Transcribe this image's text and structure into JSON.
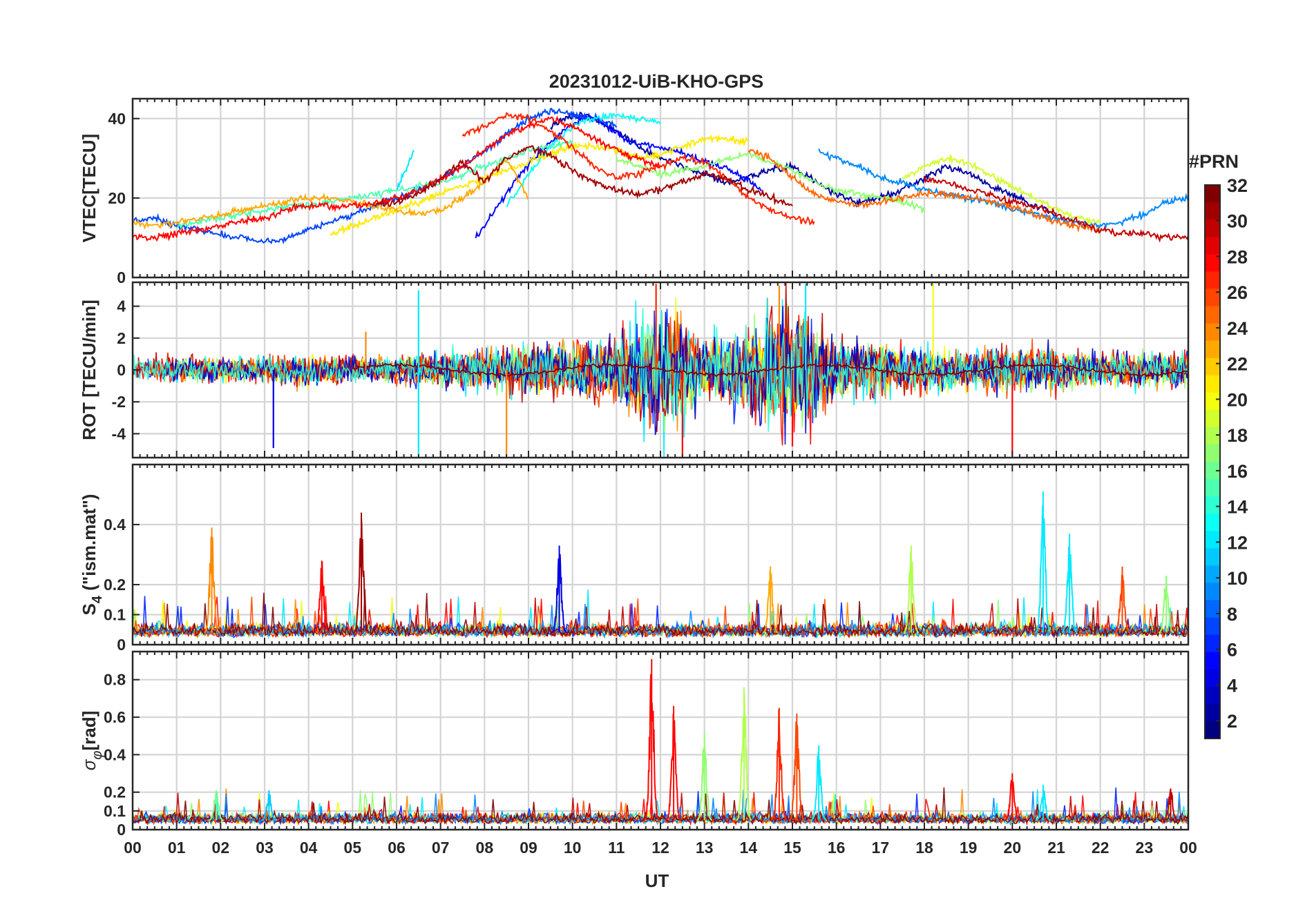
{
  "chart_data": {
    "type": "line",
    "title": "20231012-UiB-KHO-GPS",
    "xlabel": "UT",
    "x_ticks": [
      "00",
      "01",
      "02",
      "03",
      "04",
      "05",
      "06",
      "07",
      "08",
      "09",
      "10",
      "11",
      "12",
      "13",
      "14",
      "15",
      "16",
      "17",
      "18",
      "19",
      "20",
      "21",
      "22",
      "23",
      "00"
    ],
    "x_range_hours": [
      0,
      24
    ],
    "grid": true,
    "colorbar": {
      "title": "#PRN",
      "range": [
        1,
        32
      ],
      "colormap": "jet",
      "ticks": [
        "2",
        "4",
        "6",
        "8",
        "10",
        "12",
        "14",
        "16",
        "18",
        "20",
        "22",
        "24",
        "26",
        "28",
        "30",
        "32"
      ],
      "placement": "right"
    },
    "panels": [
      {
        "name": "vtec",
        "ylabel": "VTEC[TECU]",
        "ylim": [
          0,
          45
        ],
        "y_ticks": [
          "0",
          "20",
          "40"
        ],
        "y_tick_values": [
          0,
          20,
          40
        ],
        "series": [
          {
            "prn": 2,
            "x": [
              9.5,
              10.0,
              10.5,
              11.0,
              11.5,
              12.0,
              12.5,
              13.0,
              13.5,
              14.0,
              14.5,
              15.0,
              15.5,
              16.0,
              16.5,
              17.0,
              17.5,
              18.0,
              18.5,
              19.0,
              19.5,
              20.0,
              20.5,
              21.0
            ],
            "y": [
              38,
              41,
              40,
              37,
              33,
              30,
              28,
              26,
              24,
              25,
              27,
              28,
              24,
              21,
              19,
              20,
              22,
              25,
              28,
              26,
              23,
              21,
              18,
              16
            ]
          },
          {
            "prn": 5,
            "x": [
              7.8,
              8.3,
              8.8,
              9.3,
              9.8,
              10.3,
              10.8,
              11.3,
              11.8,
              12.3,
              12.8,
              13.3,
              13.8,
              14.3
            ],
            "y": [
              10,
              18,
              26,
              32,
              37,
              41,
              38,
              34,
              33,
              32,
              30,
              28,
              26,
              22
            ]
          },
          {
            "prn": 7,
            "x": [
              0.0,
              0.5,
              1.0,
              1.5,
              2.0,
              2.5,
              3.0,
              3.5,
              4.0,
              4.5,
              5.0,
              5.5,
              6.0,
              6.5,
              7.0,
              7.5,
              8.0,
              8.5,
              9.0,
              9.5,
              10.0,
              10.5,
              11.0
            ],
            "y": [
              14,
              15,
              13,
              12,
              11,
              10,
              9,
              10,
              12,
              14,
              16,
              18,
              20,
              22,
              25,
              28,
              32,
              36,
              40,
              42,
              41,
              40,
              38
            ]
          },
          {
            "prn": 9,
            "x": [
              15.6,
              16.0,
              16.5,
              17.0,
              17.5,
              18.0,
              18.5,
              19.0,
              19.5,
              20.0,
              20.5,
              21.0,
              21.5,
              22.0,
              22.5,
              23.0,
              23.5,
              24.0
            ],
            "y": [
              32,
              30,
              28,
              25,
              24,
              22,
              21,
              20,
              19,
              17,
              16,
              15,
              14,
              13,
              14,
              16,
              19,
              20
            ]
          },
          {
            "prn": 12,
            "x": [
              6.0,
              6.2,
              6.4
            ],
            "y": [
              22,
              27,
              32
            ]
          },
          {
            "prn": 13,
            "x": [
              8.5,
              9.0,
              9.5,
              10.0,
              10.5,
              11.0,
              11.5,
              12.0
            ],
            "y": [
              18,
              26,
              33,
              38,
              40,
              41,
              40,
              39
            ]
          },
          {
            "prn": 15,
            "x": [
              1.0,
              1.5,
              2.0,
              2.5,
              3.0,
              3.5,
              4.0,
              4.5,
              5.0,
              5.5,
              6.0,
              6.5,
              7.0,
              7.5,
              8.0,
              8.5,
              9.0,
              9.5,
              10.0
            ],
            "y": [
              13,
              14,
              15,
              16,
              17,
              18,
              18,
              19,
              20,
              21,
              22,
              23,
              24,
              26,
              28,
              30,
              32,
              33,
              34
            ]
          },
          {
            "prn": 17,
            "x": [
              11.0,
              11.5,
              12.0,
              12.5,
              13.0,
              13.5,
              14.0,
              14.5,
              15.0,
              15.5,
              16.0,
              16.5,
              17.0,
              17.5,
              18.0
            ],
            "y": [
              30,
              28,
              26,
              27,
              28,
              30,
              31,
              29,
              27,
              24,
              22,
              21,
              20,
              19,
              17
            ]
          },
          {
            "prn": 19,
            "x": [
              17.5,
              18.0,
              18.5,
              19.0,
              19.5,
              20.0,
              20.5,
              21.0,
              21.5,
              22.0
            ],
            "y": [
              25,
              28,
              30,
              29,
              26,
              23,
              20,
              17,
              15,
              14
            ]
          },
          {
            "prn": 21,
            "x": [
              4.5,
              5.0,
              5.5,
              6.0,
              6.5,
              7.0,
              7.5,
              8.0,
              8.5,
              9.0,
              9.5,
              10.0,
              10.5,
              11.0,
              11.5,
              12.0,
              12.5,
              13.0,
              13.5,
              14.0
            ],
            "y": [
              11,
              13,
              15,
              17,
              19,
              21,
              23,
              25,
              27,
              29,
              31,
              33,
              33,
              32,
              30,
              31,
              33,
              35,
              35,
              34
            ]
          },
          {
            "prn": 23,
            "x": [
              0.0,
              0.5,
              1.0,
              1.5,
              2.0,
              2.5,
              3.0,
              3.5,
              4.0,
              4.5,
              5.0,
              5.5,
              6.0,
              6.5,
              7.0,
              7.5,
              8.0,
              8.5,
              9.0
            ],
            "y": [
              14,
              13,
              14,
              15,
              16,
              17,
              18,
              19,
              20,
              20,
              19,
              18,
              17,
              16,
              17,
              20,
              24,
              30,
              20
            ]
          },
          {
            "prn": 25,
            "x": [
              14.0,
              14.5,
              15.0,
              15.5,
              16.0,
              16.5,
              17.0,
              17.5,
              18.0,
              18.5,
              19.0,
              19.5,
              20.0,
              20.5,
              21.0,
              21.5,
              22.0
            ],
            "y": [
              32,
              30,
              25,
              21,
              19,
              18,
              19,
              20,
              21,
              21,
              20,
              19,
              18,
              16,
              14,
              13,
              12
            ]
          },
          {
            "prn": 27,
            "x": [
              7.5,
              8.0,
              8.5,
              9.0,
              9.5,
              10.0,
              10.5,
              11.0,
              11.5,
              12.0,
              12.5,
              13.0,
              13.5,
              14.0,
              14.5,
              15.0,
              15.5
            ],
            "y": [
              36,
              38,
              41,
              40,
              37,
              33,
              28,
              25,
              26,
              28,
              30,
              29,
              25,
              20,
              17,
              15,
              14
            ]
          },
          {
            "prn": 28,
            "x": [
              0.0,
              0.5,
              1.0,
              1.5,
              2.0,
              2.5,
              3.0,
              3.5,
              4.0,
              4.5,
              5.0,
              5.5,
              6.0,
              6.5,
              7.0,
              7.5,
              8.0,
              8.5,
              9.0,
              9.5,
              10.0,
              10.5,
              11.0,
              11.5,
              12.0
            ],
            "y": [
              10,
              10,
              11,
              12,
              13,
              14,
              15,
              17,
              18,
              18,
              18,
              19,
              20,
              22,
              25,
              28,
              32,
              36,
              38,
              40,
              38,
              35,
              32,
              30,
              28
            ]
          },
          {
            "prn": 30,
            "x": [
              18.0,
              18.5,
              19.0,
              19.5,
              20.0,
              20.5,
              21.0,
              21.5,
              22.0,
              22.5,
              23.0,
              23.5,
              24.0
            ],
            "y": [
              25,
              24,
              22,
              21,
              19,
              18,
              16,
              14,
              12,
              11,
              11,
              10,
              10
            ]
          },
          {
            "prn": 31,
            "x": [
              5.5,
              6.0,
              6.5,
              7.0,
              7.5,
              8.0,
              8.5,
              9.0,
              9.5,
              10.0,
              10.5,
              11.0,
              11.5,
              12.0,
              12.5,
              13.0,
              13.5,
              14.0,
              14.5,
              15.0
            ],
            "y": [
              18,
              19,
              21,
              25,
              29,
              24,
              30,
              33,
              31,
              27,
              24,
              22,
              21,
              22,
              24,
              26,
              25,
              22,
              20,
              18
            ]
          }
        ]
      },
      {
        "name": "rot",
        "ylabel": "ROT [TECU/min]",
        "ylim": [
          -5.5,
          5.5
        ],
        "y_ticks": [
          "-4",
          "-2",
          "0",
          "2",
          "4"
        ],
        "y_tick_values": [
          -4,
          -2,
          0,
          2,
          4
        ],
        "amplitude_profile": {
          "hours": [
            0,
            2,
            4,
            6,
            7,
            8,
            9,
            10,
            11,
            11.5,
            12,
            12.5,
            13,
            14,
            14.5,
            15,
            15.5,
            16,
            17,
            18,
            19,
            20,
            21,
            22,
            23,
            24
          ],
          "typical_abs_rot": [
            0.6,
            0.6,
            0.7,
            0.6,
            0.8,
            1.0,
            1.2,
            1.3,
            1.5,
            2.5,
            3.0,
            2.5,
            1.5,
            2.0,
            3.0,
            3.2,
            2.5,
            1.5,
            1.2,
            1.0,
            0.9,
            1.2,
            1.0,
            0.8,
            0.8,
            0.8
          ]
        },
        "peaks": [
          {
            "prn": 4,
            "hour": 3.2,
            "value": -4.9
          },
          {
            "prn": 12,
            "hour": 6.5,
            "value": -5.3
          },
          {
            "prn": 12,
            "hour": 6.5,
            "value": 5.0
          },
          {
            "prn": 24,
            "hour": 8.5,
            "value": -5.4
          },
          {
            "prn": 27,
            "hour": 11.9,
            "value": 5.4
          },
          {
            "prn": 28,
            "hour": 12.5,
            "value": -5.4
          },
          {
            "prn": 24,
            "hour": 14.7,
            "value": 5.3
          },
          {
            "prn": 28,
            "hour": 15.0,
            "value": -4.8
          },
          {
            "prn": 12,
            "hour": 15.3,
            "value": 5.4
          },
          {
            "prn": 20,
            "hour": 18.2,
            "value": 5.4
          },
          {
            "prn": 28,
            "hour": 20.0,
            "value": -5.4
          },
          {
            "prn": 24,
            "hour": 5.3,
            "value": 2.4
          }
        ]
      },
      {
        "name": "s4",
        "ylabel": "S4 (\"ism.mat\")",
        "ylabel_main": "S",
        "ylabel_sub": "4",
        "ylabel_rest": " (\"ism.mat\")",
        "ylim": [
          0,
          0.6
        ],
        "y_ticks": [
          "0",
          "0.1",
          "0.2",
          "0.4"
        ],
        "y_tick_values": [
          0,
          0.1,
          0.2,
          0.4
        ],
        "baseline": 0.04,
        "peaks": [
          {
            "prn": 24,
            "hour": 1.8,
            "value": 0.39
          },
          {
            "prn": 28,
            "hour": 4.3,
            "value": 0.28
          },
          {
            "prn": 31,
            "hour": 5.2,
            "value": 0.44
          },
          {
            "prn": 4,
            "hour": 9.7,
            "value": 0.33
          },
          {
            "prn": 23,
            "hour": 14.5,
            "value": 0.26
          },
          {
            "prn": 18,
            "hour": 17.7,
            "value": 0.33
          },
          {
            "prn": 12,
            "hour": 20.7,
            "value": 0.51
          },
          {
            "prn": 12,
            "hour": 21.3,
            "value": 0.37
          },
          {
            "prn": 26,
            "hour": 22.5,
            "value": 0.26
          },
          {
            "prn": 17,
            "hour": 23.5,
            "value": 0.23
          }
        ]
      },
      {
        "name": "sigma_phi",
        "ylabel": "σφ[rad]",
        "ylabel_main": "σ",
        "ylabel_sub": "φ",
        "ylabel_rest": "[rad]",
        "ylim": [
          0,
          0.95
        ],
        "y_ticks": [
          "0",
          "0.1",
          "0.2",
          "0.4",
          "0.6",
          "0.8"
        ],
        "y_tick_values": [
          0,
          0.1,
          0.2,
          0.4,
          0.6,
          0.8
        ],
        "baseline": 0.05,
        "peaks": [
          {
            "prn": 28,
            "hour": 11.8,
            "value": 0.91
          },
          {
            "prn": 28,
            "hour": 12.3,
            "value": 0.66
          },
          {
            "prn": 17,
            "hour": 13.0,
            "value": 0.52
          },
          {
            "prn": 18,
            "hour": 13.9,
            "value": 0.76
          },
          {
            "prn": 27,
            "hour": 14.7,
            "value": 0.65
          },
          {
            "prn": 26,
            "hour": 15.1,
            "value": 0.62
          },
          {
            "prn": 12,
            "hour": 15.6,
            "value": 0.45
          },
          {
            "prn": 28,
            "hour": 20.0,
            "value": 0.3
          },
          {
            "prn": 12,
            "hour": 20.7,
            "value": 0.24
          },
          {
            "prn": 30,
            "hour": 23.6,
            "value": 0.22
          },
          {
            "prn": 11,
            "hour": 3.1,
            "value": 0.21
          },
          {
            "prn": 16,
            "hour": 1.9,
            "value": 0.21
          }
        ]
      }
    ]
  }
}
